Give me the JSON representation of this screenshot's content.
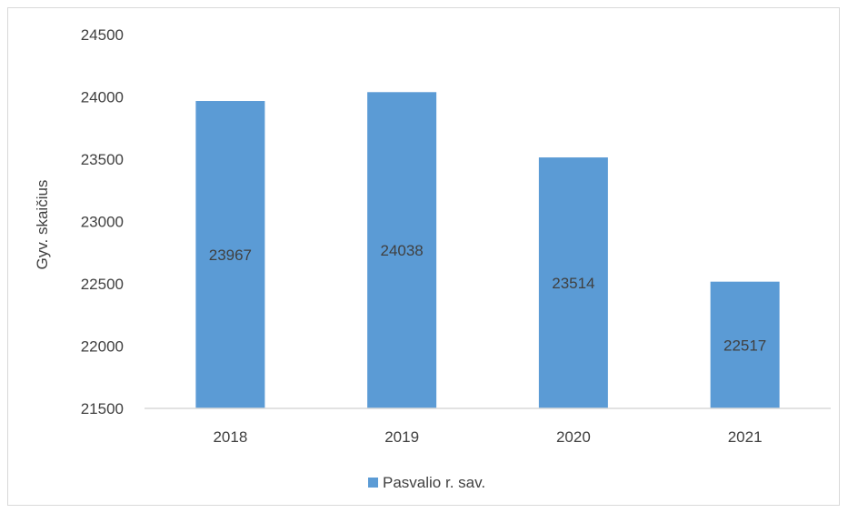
{
  "chart_data": {
    "type": "bar",
    "title": "",
    "xlabel": "",
    "ylabel": "Gyv. skaičius",
    "categories": [
      "2018",
      "2019",
      "2020",
      "2021"
    ],
    "series": [
      {
        "name": "Pasvalio r. sav.",
        "values": [
          23967,
          24038,
          23514,
          22517
        ],
        "color": "#5b9bd5"
      }
    ],
    "data_labels": [
      "23967",
      "24038",
      "23514",
      "22517"
    ],
    "ylim": [
      21500,
      24500
    ],
    "yticks": [
      21500,
      22000,
      22500,
      23000,
      23500,
      24000,
      24500
    ],
    "ytick_labels": [
      "21500",
      "22000",
      "22500",
      "23000",
      "23500",
      "24000",
      "24500"
    ],
    "grid": false,
    "legend_position": "bottom"
  }
}
